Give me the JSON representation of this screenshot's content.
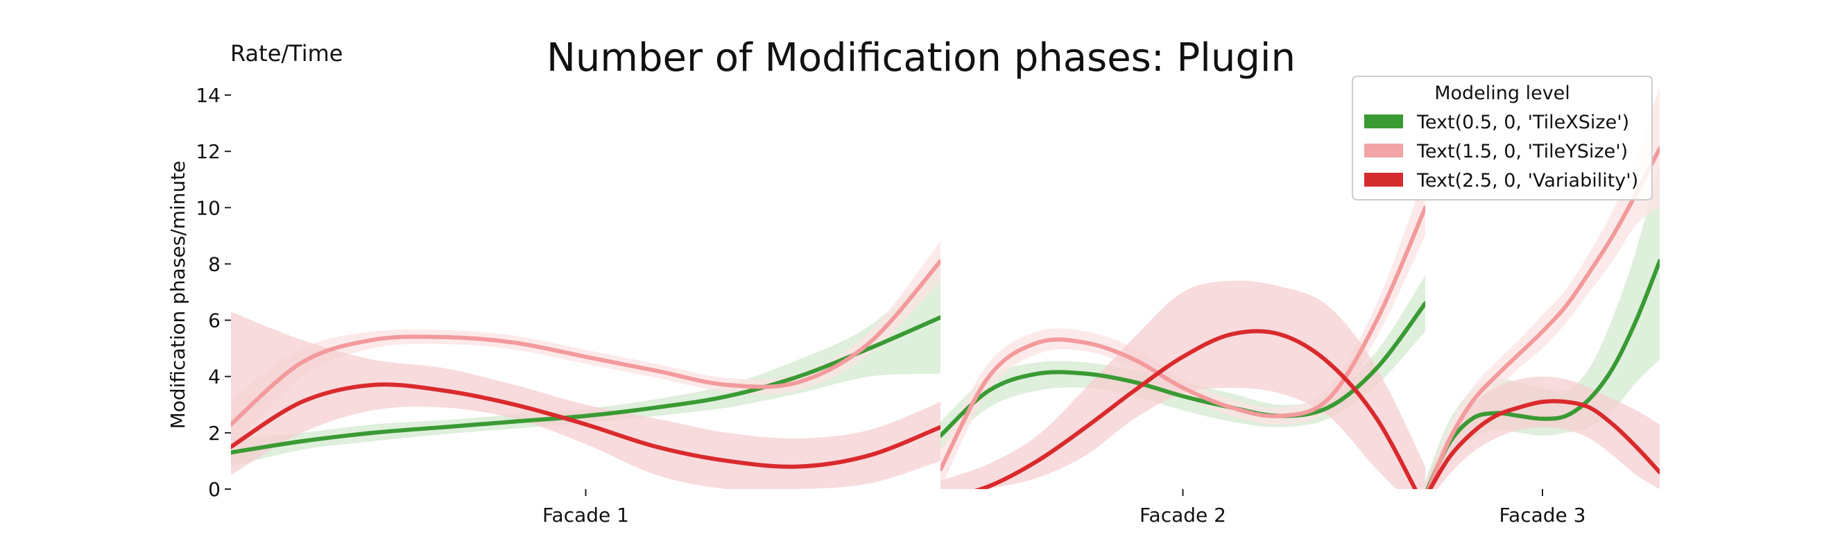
{
  "chart_data": {
    "type": "line",
    "title": "Number of Modification phases: Plugin",
    "corner_label": "Rate/Time",
    "ylabel": "Modification phases/minute",
    "xlabel": "",
    "ylim": [
      0,
      14
    ],
    "yticks": [
      "0",
      "2",
      "4",
      "6",
      "8",
      "10",
      "12",
      "14"
    ],
    "grid": false,
    "legend": {
      "title": "Modeling level",
      "placement": "top-right",
      "entries": [
        {
          "label": "Text(0.5, 0, 'TileXSize')",
          "color": "#3a9a34"
        },
        {
          "label": "Text(1.5, 0, 'TileYSize')",
          "color": "#f2a3a5"
        },
        {
          "label": "Text(2.5, 0, 'Variability')",
          "color": "#d42b2f"
        }
      ]
    },
    "facets": [
      {
        "label": "Facade 1",
        "x": [
          0,
          0.1,
          0.2,
          0.3,
          0.4,
          0.5,
          0.6,
          0.7,
          0.8,
          0.9,
          1.0
        ],
        "series": [
          {
            "color": "#3a9a34",
            "band_color": "#d3ead0",
            "values": [
              1.3,
              1.7,
              2.0,
              2.2,
              2.4,
              2.6,
              2.9,
              3.3,
              4.0,
              5.0,
              6.1
            ],
            "lower": [
              0.8,
              1.4,
              1.7,
              1.95,
              2.15,
              2.35,
              2.6,
              2.9,
              3.4,
              4.0,
              4.1
            ],
            "upper": [
              1.8,
              2.0,
              2.3,
              2.45,
              2.65,
              2.85,
              3.2,
              3.7,
              4.6,
              5.8,
              8.0
            ]
          },
          {
            "color": "#f29a9c",
            "band_color": "#fbe3e3",
            "values": [
              2.3,
              4.5,
              5.3,
              5.4,
              5.2,
              4.7,
              4.2,
              3.7,
              3.8,
              5.2,
              8.1
            ],
            "lower": [
              1.4,
              4.0,
              5.0,
              5.15,
              4.95,
              4.45,
              3.95,
              3.45,
              3.5,
              4.8,
              7.4
            ],
            "upper": [
              3.2,
              5.0,
              5.6,
              5.65,
              5.45,
              4.95,
              4.45,
              3.95,
              4.1,
              5.6,
              8.8
            ]
          },
          {
            "color": "#d92a2d",
            "band_color": "#f6cfd0",
            "values": [
              1.5,
              3.1,
              3.7,
              3.5,
              3.0,
              2.3,
              1.5,
              1.0,
              0.8,
              1.2,
              2.2
            ],
            "lower": [
              0.5,
              2.0,
              2.8,
              2.9,
              2.5,
              1.6,
              0.5,
              0.0,
              0.0,
              0.2,
              1.0
            ],
            "upper": [
              6.3,
              5.3,
              4.6,
              4.3,
              3.7,
              3.0,
              2.5,
              2.0,
              1.8,
              2.1,
              3.1
            ]
          }
        ]
      },
      {
        "label": "Facade 2",
        "x": [
          0,
          0.1,
          0.2,
          0.3,
          0.4,
          0.5,
          0.6,
          0.7,
          0.8,
          0.9,
          1.0
        ],
        "series": [
          {
            "color": "#3a9a34",
            "band_color": "#d3ead0",
            "values": [
              1.9,
              3.5,
              4.1,
              4.1,
              3.8,
              3.3,
              2.9,
              2.6,
              2.9,
              4.3,
              6.6
            ],
            "lower": [
              1.4,
              2.9,
              3.5,
              3.6,
              3.3,
              2.8,
              2.4,
              2.2,
              2.5,
              3.7,
              5.6
            ],
            "upper": [
              2.4,
              4.0,
              4.5,
              4.5,
              4.2,
              3.8,
              3.4,
              3.0,
              3.3,
              4.9,
              7.6
            ]
          },
          {
            "color": "#f29a9c",
            "band_color": "#fbe3e3",
            "values": [
              0.7,
              4.0,
              5.2,
              5.2,
              4.6,
              3.6,
              2.9,
              2.6,
              3.2,
              6.0,
              10.0
            ],
            "lower": [
              0.0,
              3.5,
              4.8,
              4.9,
              4.3,
              3.3,
              2.6,
              2.3,
              2.8,
              5.4,
              9.0
            ],
            "upper": [
              1.4,
              4.5,
              5.6,
              5.6,
              5.0,
              3.9,
              3.2,
              2.9,
              3.6,
              6.6,
              11.2
            ]
          },
          {
            "color": "#d92a2d",
            "band_color": "#f6cfd0",
            "values": [
              -0.4,
              0.1,
              1.0,
              2.2,
              3.5,
              4.7,
              5.5,
              5.5,
              4.5,
              2.5,
              -0.7
            ],
            "lower": [
              -0.4,
              0.0,
              0.4,
              1.2,
              2.5,
              3.4,
              3.6,
              3.4,
              2.6,
              0.7,
              -1.0
            ],
            "upper": [
              0.3,
              0.9,
              1.9,
              3.6,
              5.4,
              7.0,
              7.4,
              7.2,
              6.5,
              4.3,
              0.8
            ]
          }
        ]
      },
      {
        "label": "Facade 3",
        "x": [
          0,
          0.1,
          0.2,
          0.3,
          0.4,
          0.5,
          0.6,
          0.7,
          0.8,
          0.9,
          1.0
        ],
        "series": [
          {
            "color": "#3a9a34",
            "band_color": "#d3ead0",
            "values": [
              -0.2,
              1.6,
              2.5,
              2.7,
              2.6,
              2.5,
              2.6,
              3.2,
              4.3,
              6.0,
              8.1
            ],
            "lower": [
              -0.6,
              1.0,
              1.8,
              2.1,
              2.0,
              1.9,
              2.0,
              2.2,
              2.8,
              3.8,
              4.6
            ],
            "upper": [
              0.3,
              2.4,
              3.5,
              3.9,
              3.8,
              3.6,
              3.5,
              4.3,
              6.1,
              8.5,
              11.6
            ]
          },
          {
            "color": "#f29a9c",
            "band_color": "#fbe3e3",
            "values": [
              -0.3,
              1.7,
              3.1,
              4.0,
              4.8,
              5.6,
              6.5,
              7.7,
              9.0,
              10.5,
              12.1
            ],
            "lower": [
              -0.6,
              1.3,
              2.6,
              3.5,
              4.3,
              5.0,
              5.9,
              7.0,
              8.1,
              9.4,
              10.0
            ],
            "upper": [
              0.0,
              2.2,
              3.6,
              4.5,
              5.3,
              6.2,
              7.1,
              8.4,
              9.9,
              11.8,
              14.3
            ]
          },
          {
            "color": "#d92a2d",
            "band_color": "#f6cfd0",
            "values": [
              -0.3,
              1.1,
              2.0,
              2.6,
              2.9,
              3.1,
              3.1,
              2.9,
              2.3,
              1.5,
              0.6
            ],
            "lower": [
              -0.6,
              0.5,
              1.3,
              1.8,
              2.1,
              2.2,
              2.1,
              1.8,
              1.2,
              0.5,
              0.0
            ],
            "upper": [
              0.2,
              1.9,
              3.0,
              3.6,
              3.9,
              4.0,
              3.9,
              3.6,
              3.2,
              2.8,
              2.3
            ]
          }
        ]
      }
    ]
  }
}
